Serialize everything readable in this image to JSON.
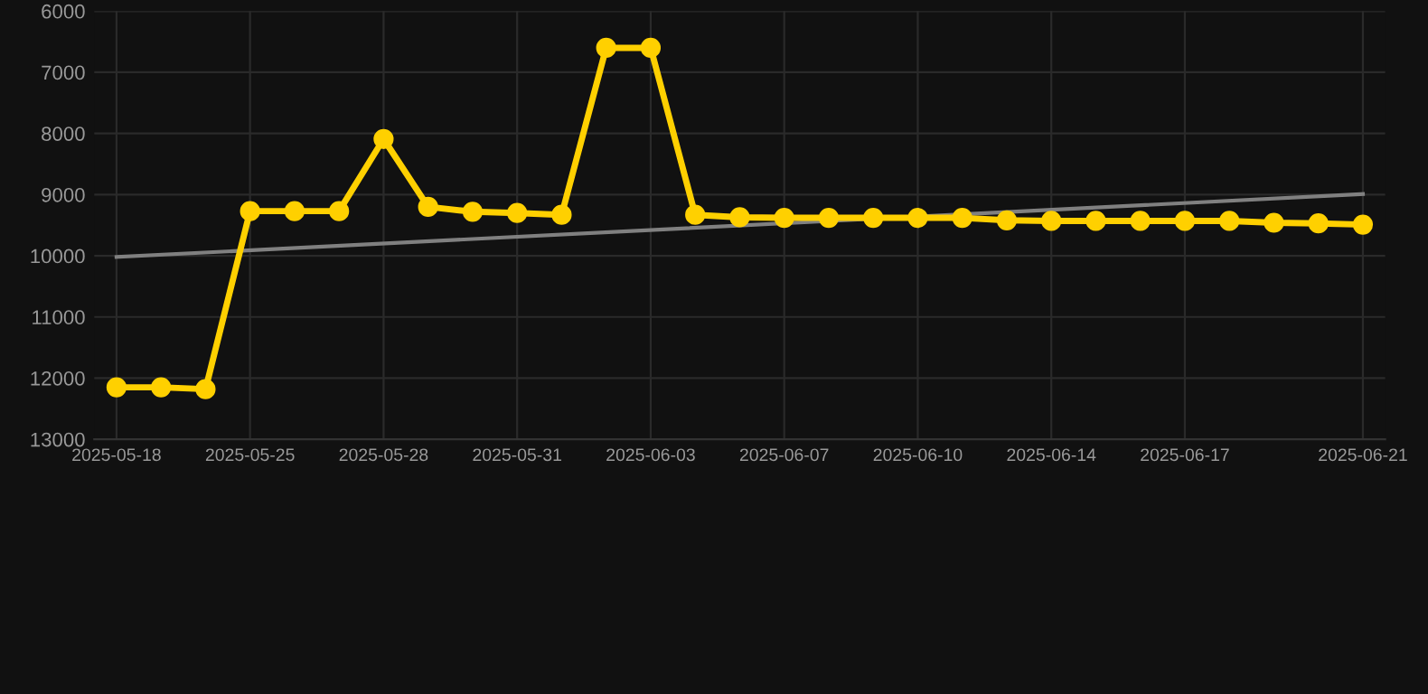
{
  "chart_data": {
    "type": "line",
    "categories": [
      "2025-05-18",
      null,
      null,
      "2025-05-25",
      null,
      null,
      "2025-05-28",
      null,
      null,
      "2025-05-31",
      null,
      null,
      "2025-06-03",
      null,
      null,
      "2025-06-07",
      null,
      null,
      "2025-06-10",
      null,
      null,
      "2025-06-14",
      null,
      null,
      "2025-06-17",
      null,
      null,
      null,
      "2025-06-21"
    ],
    "series": [
      {
        "color": "#ffd000",
        "marker": "circle",
        "values": [
          12150,
          12150,
          12180,
          9270,
          9270,
          9270,
          8090,
          9200,
          9280,
          9300,
          9330,
          6600,
          6600,
          9330,
          9370,
          9380,
          9380,
          9380,
          9380,
          9380,
          9420,
          9430,
          9430,
          9430,
          9430,
          9430,
          9460,
          9470,
          9490
        ]
      },
      {
        "color": "#808080",
        "marker": "none",
        "values": [
          10020,
          null,
          null,
          null,
          null,
          null,
          null,
          null,
          null,
          null,
          null,
          null,
          null,
          null,
          null,
          null,
          null,
          null,
          null,
          null,
          null,
          null,
          null,
          null,
          null,
          null,
          null,
          null,
          8990
        ]
      }
    ],
    "ylim": [
      13000,
      6000
    ],
    "yticks": [
      6000,
      7000,
      8000,
      9000,
      10000,
      11000,
      12000,
      13000
    ],
    "grid": true,
    "line_style": "solid"
  }
}
